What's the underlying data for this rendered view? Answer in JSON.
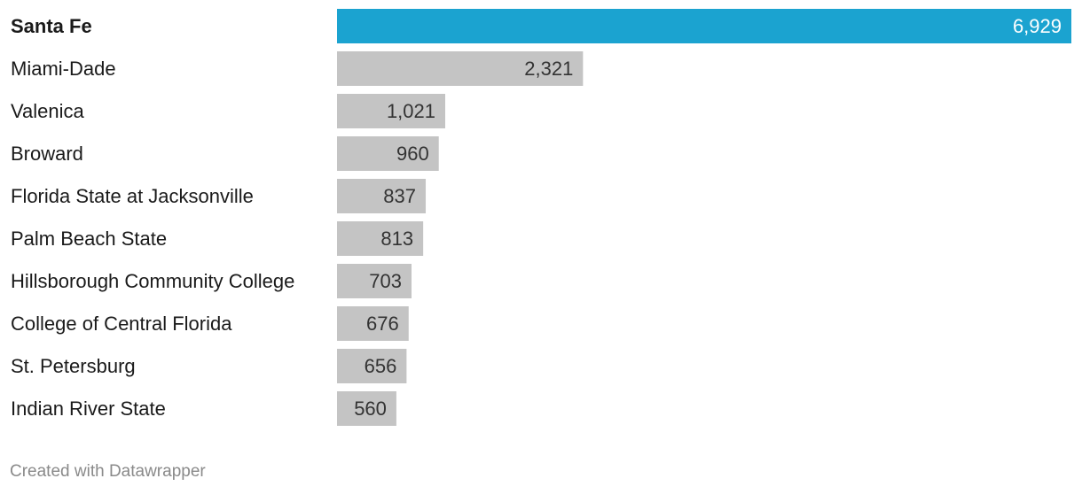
{
  "chart_data": {
    "type": "bar",
    "orientation": "horizontal",
    "categories": [
      "Santa Fe",
      "Miami-Dade",
      "Valenica",
      "Broward",
      "Florida State at Jacksonville",
      "Palm Beach State",
      "Hillsborough Community College",
      "College of Central Florida",
      "St. Petersburg",
      "Indian River State"
    ],
    "values": [
      6929,
      2321,
      1021,
      960,
      837,
      813,
      703,
      676,
      656,
      560
    ],
    "value_labels": [
      "6,929",
      "2,321",
      "1,021",
      "960",
      "837",
      "813",
      "703",
      "676",
      "656",
      "560"
    ],
    "highlight": "Santa Fe",
    "colors": {
      "highlight": "#1ba3d0",
      "default": "#c4c4c4"
    },
    "xlim": [
      0,
      6929
    ],
    "grid": false,
    "legend": "none"
  },
  "footer": {
    "credit": "Created with Datawrapper"
  }
}
